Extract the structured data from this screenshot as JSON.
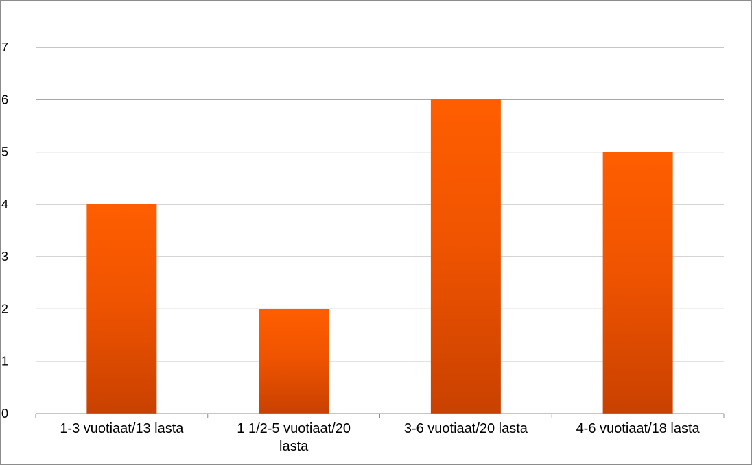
{
  "chart_data": {
    "type": "bar",
    "categories": [
      [
        "1-3 vuotiaat/13 lasta"
      ],
      [
        "1 1/2-5 vuotiaat/20",
        "lasta"
      ],
      [
        "3-6 vuotiaat/20 lasta"
      ],
      [
        "4-6 vuotiaat/18 lasta"
      ]
    ],
    "values": [
      4,
      2,
      6,
      5
    ],
    "title": "",
    "xlabel": "",
    "ylabel": "",
    "ylim": [
      0,
      7
    ],
    "yticks": [
      "0",
      "1",
      "2",
      "3",
      "4",
      "5",
      "6",
      "7"
    ],
    "grid": true,
    "legend": "none",
    "colors": {
      "bar_top": "#ff5e00",
      "bar_bottom": "#c94100",
      "gridline": "#8c8c8c",
      "frame": "#8c8c8c"
    }
  }
}
